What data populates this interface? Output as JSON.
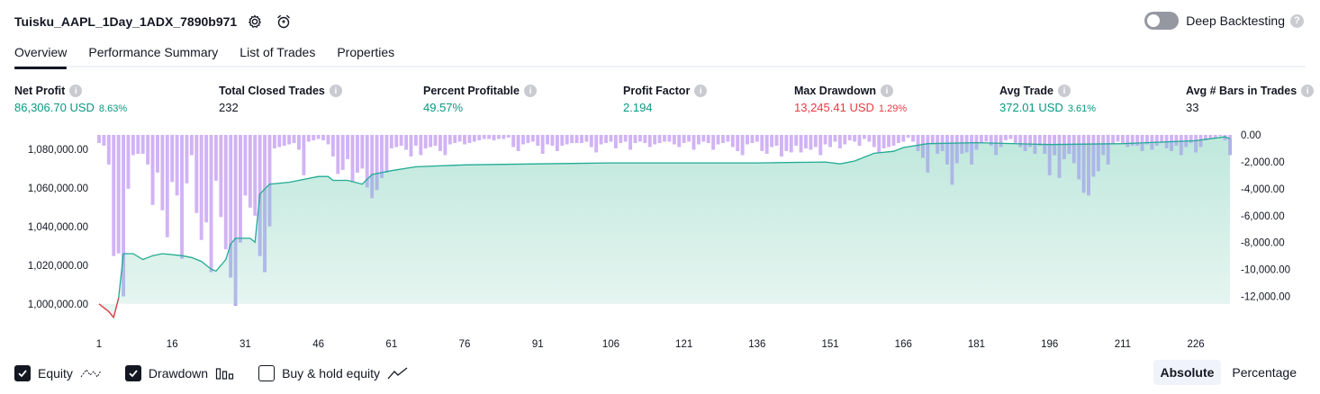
{
  "header": {
    "strategy_name": "Tuisku_AAPL_1Day_1ADX_7890b971",
    "settings_icon": "gear-icon",
    "alert_icon": "alarm-add-icon",
    "deep_backtesting_label": "Deep Backtesting",
    "deep_backtesting_on": false
  },
  "tabs": [
    {
      "label": "Overview",
      "active": true
    },
    {
      "label": "Performance Summary",
      "active": false
    },
    {
      "label": "List of Trades",
      "active": false
    },
    {
      "label": "Properties",
      "active": false
    }
  ],
  "metrics": [
    {
      "label": "Net Profit",
      "value": "86,306.70 USD",
      "sub": "8.63%",
      "color": "#089981"
    },
    {
      "label": "Total Closed Trades",
      "value": "232",
      "sub": "",
      "color": "#131722"
    },
    {
      "label": "Percent Profitable",
      "value": "49.57%",
      "sub": "",
      "color": "#089981"
    },
    {
      "label": "Profit Factor",
      "value": "2.194",
      "sub": "",
      "color": "#089981"
    },
    {
      "label": "Max Drawdown",
      "value": "13,245.41 USD",
      "sub": "1.29%",
      "color": "#f23645"
    },
    {
      "label": "Avg Trade",
      "value": "372.01 USD",
      "sub": "3.61%",
      "color": "#089981"
    },
    {
      "label": "Avg # Bars in Trades",
      "value": "33",
      "sub": "",
      "color": "#131722"
    }
  ],
  "chart_data": {
    "type": "area",
    "left_axis_ticks": [
      "1,080,000.00",
      "1,060,000.00",
      "1,040,000.00",
      "1,020,000.00",
      "1,000,000.00"
    ],
    "left_axis_values": [
      1080000,
      1060000,
      1040000,
      1020000,
      1000000
    ],
    "right_axis_ticks": [
      "0.00",
      "-2,000.00",
      "-4,000.00",
      "-6,000.00",
      "-8,000.00",
      "-10,000.00",
      "-12,000.00"
    ],
    "right_axis_values": [
      0,
      -2000,
      -4000,
      -6000,
      -8000,
      -10000,
      -12000
    ],
    "x_ticks": [
      "1",
      "16",
      "31",
      "46",
      "61",
      "76",
      "91",
      "106",
      "121",
      "136",
      "151",
      "166",
      "181",
      "196",
      "211",
      "226"
    ],
    "x_tick_values": [
      1,
      16,
      31,
      46,
      61,
      76,
      91,
      106,
      121,
      136,
      151,
      166,
      181,
      196,
      211,
      226
    ],
    "x_range": [
      1,
      233
    ],
    "equity_range": [
      999000,
      1087500
    ],
    "drawdown_range": [
      -12700,
      0
    ],
    "equity": [
      [
        1,
        1000000
      ],
      [
        3,
        996000
      ],
      [
        4,
        993000
      ],
      [
        5,
        1003000
      ],
      [
        6,
        1026000
      ],
      [
        8,
        1026000
      ],
      [
        10,
        1023000
      ],
      [
        12,
        1025000
      ],
      [
        14,
        1026000
      ],
      [
        18,
        1025000
      ],
      [
        20,
        1024000
      ],
      [
        22,
        1022000
      ],
      [
        24,
        1018000
      ],
      [
        25,
        1017000
      ],
      [
        27,
        1023000
      ],
      [
        28,
        1031000
      ],
      [
        29,
        1034000
      ],
      [
        30,
        1034000
      ],
      [
        32,
        1034000
      ],
      [
        33,
        1032000
      ],
      [
        34,
        1057000
      ],
      [
        36,
        1062000
      ],
      [
        40,
        1063000
      ],
      [
        46,
        1066000
      ],
      [
        48,
        1066000
      ],
      [
        49,
        1064000
      ],
      [
        52,
        1064000
      ],
      [
        55,
        1062000
      ],
      [
        57,
        1067000
      ],
      [
        61,
        1069000
      ],
      [
        66,
        1071000
      ],
      [
        76,
        1072000
      ],
      [
        91,
        1072500
      ],
      [
        106,
        1073000
      ],
      [
        121,
        1073000
      ],
      [
        136,
        1073000
      ],
      [
        150,
        1073500
      ],
      [
        153,
        1072500
      ],
      [
        156,
        1074000
      ],
      [
        160,
        1078000
      ],
      [
        164,
        1079000
      ],
      [
        166,
        1081000
      ],
      [
        171,
        1083000
      ],
      [
        181,
        1083500
      ],
      [
        196,
        1082500
      ],
      [
        211,
        1083000
      ],
      [
        226,
        1084500
      ],
      [
        232,
        1086500
      ],
      [
        233,
        1085500
      ]
    ],
    "drawdown": [
      -600,
      -800,
      -2200,
      -9000,
      -8800,
      -12000,
      -4000,
      -1500,
      -1400,
      -1400,
      -2200,
      -5200,
      -2800,
      -5600,
      -7600,
      -3500,
      -4500,
      -9200,
      -3600,
      -1500,
      -5800,
      -7800,
      -6500,
      -10200,
      -3400,
      -6100,
      -8500,
      -10600,
      -12700,
      -8000,
      -4500,
      -5400,
      -6000,
      -9000,
      -10200,
      -6800,
      -1000,
      -900,
      -800,
      -700,
      -600,
      -1100,
      -3000,
      -500,
      -400,
      -300,
      -400,
      -700,
      -1600,
      -2900,
      -2600,
      -1800,
      -3500,
      -2800,
      -2500,
      -3900,
      -4700,
      -4100,
      -3200,
      -2800,
      -1000,
      -900,
      -800,
      -1100,
      -1600,
      -800,
      -1500,
      -1000,
      -900,
      -800,
      -1200,
      -1500,
      -700,
      -600,
      -500,
      -700,
      -600,
      -500,
      -400,
      -300,
      -300,
      -400,
      -300,
      -300,
      -200,
      -900,
      -1200,
      -700,
      -600,
      -500,
      -800,
      -1400,
      -700,
      -800,
      -1200,
      -800,
      -700,
      -600,
      -600,
      -600,
      -500,
      -900,
      -1300,
      -700,
      -600,
      -500,
      -1000,
      -600,
      -500,
      -1100,
      -600,
      -500,
      -600,
      -900,
      -700,
      -600,
      -500,
      -500,
      -700,
      -900,
      -600,
      -500,
      -1100,
      -700,
      -500,
      -600,
      -1100,
      -700,
      -600,
      -500,
      -900,
      -1200,
      -1500,
      -700,
      -600,
      -500,
      -1200,
      -1400,
      -900,
      -800,
      -1600,
      -1200,
      -1300,
      -800,
      -1300,
      -1000,
      -1100,
      -900,
      -1500,
      -700,
      -900,
      -500,
      -1000,
      -700,
      -400,
      -500,
      -800,
      -300,
      -500,
      -900,
      -1300,
      -1000,
      -900,
      -800,
      -600,
      -500,
      -200,
      -500,
      -1200,
      -1700,
      -2800,
      -700,
      -1400,
      -1200,
      -2200,
      -3700,
      -2100,
      -1400,
      -1300,
      -2200,
      -1100,
      -600,
      -500,
      -800,
      -1500,
      -900,
      -400,
      -300,
      -600,
      -900,
      -1200,
      -900,
      -1400,
      -800,
      -1400,
      -3000,
      -1500,
      -3200,
      -1800,
      -1400,
      -2100,
      -3300,
      -4300,
      -4500,
      -3100,
      -2700,
      -1500,
      -2200,
      -700,
      -500,
      -600,
      -900,
      -800,
      -800,
      -1200,
      -700,
      -1100,
      -800,
      -600,
      -1000,
      -1200,
      -800,
      -1500,
      -900,
      -600,
      -1300,
      -900,
      -400,
      -300,
      -200,
      -100,
      -400,
      -1500
    ]
  },
  "legend": [
    {
      "label": "Equity",
      "checked": true,
      "icon": "equity-line-icon"
    },
    {
      "label": "Drawdown",
      "checked": true,
      "icon": "drawdown-bars-icon"
    },
    {
      "label": "Buy & hold equity",
      "checked": false,
      "icon": "buy-hold-line-icon"
    }
  ],
  "mode": {
    "absolute_label": "Absolute",
    "percentage_label": "Percentage",
    "active": "Absolute"
  },
  "colors": {
    "equity_line": "#22ab94",
    "equity_loss_line": "#f23645",
    "equity_fill": "#c3ebe1",
    "drawdown_bar": "#d1b3f5",
    "drawdown_overlap": "#a8aee6"
  }
}
